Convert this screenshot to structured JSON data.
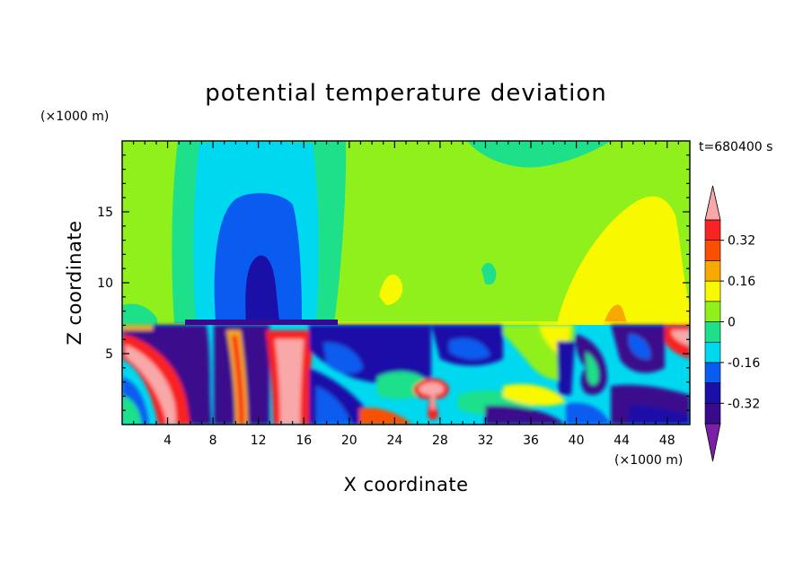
{
  "chart_data": {
    "type": "heatmap",
    "title": "potential temperature deviation",
    "xlabel": "X coordinate",
    "ylabel": "Z coordinate",
    "x_unit": "(×1000 m)",
    "y_unit": "(×1000 m)",
    "time_label": "t=680400 s",
    "xlim": [
      0,
      50
    ],
    "ylim": [
      0,
      20
    ],
    "x_ticks": [
      4,
      8,
      12,
      16,
      20,
      24,
      28,
      32,
      36,
      40,
      44,
      48
    ],
    "y_ticks": [
      5,
      10,
      15
    ],
    "colorbar": {
      "levels": [
        -0.4,
        -0.32,
        -0.24,
        -0.16,
        -0.08,
        0,
        0.08,
        0.16,
        0.24,
        0.32,
        0.4
      ],
      "colors": [
        "#7d1fa6",
        "#3a0a8c",
        "#1a10a8",
        "#0a5cf0",
        "#00d8f0",
        "#1ee08a",
        "#90f01c",
        "#f8f800",
        "#f8a800",
        "#f85000",
        "#f82424",
        "#f8a8a8"
      ],
      "tick_labels": [
        "-0.32",
        "-0.16",
        "0",
        "0.16",
        "0.32"
      ],
      "tick_values": [
        -0.32,
        -0.16,
        0,
        0.16,
        0.32
      ]
    }
  }
}
